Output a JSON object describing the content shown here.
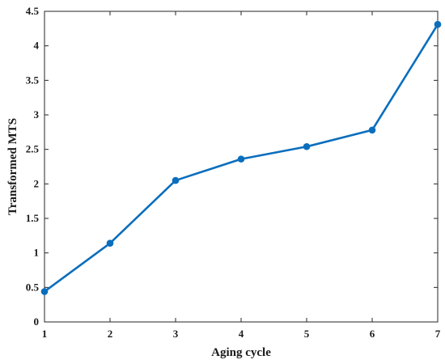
{
  "chart_data": {
    "type": "line",
    "xlabel": "Aging cycle",
    "ylabel": "Transformed MTS",
    "xlim": [
      1,
      7
    ],
    "ylim": [
      0,
      4.5
    ],
    "xticks": [
      "1",
      "2",
      "3",
      "4",
      "5",
      "6",
      "7"
    ],
    "yticks": [
      "0",
      "0.5",
      "1",
      "1.5",
      "2",
      "2.5",
      "3",
      "3.5",
      "4",
      "4.5"
    ],
    "grid": false,
    "series": [
      {
        "color": "#0a6ebd",
        "x": [
          1,
          2,
          3,
          4,
          5,
          6,
          7
        ],
        "y": [
          0.44,
          1.14,
          2.05,
          2.36,
          2.54,
          2.78,
          4.31
        ]
      }
    ]
  }
}
